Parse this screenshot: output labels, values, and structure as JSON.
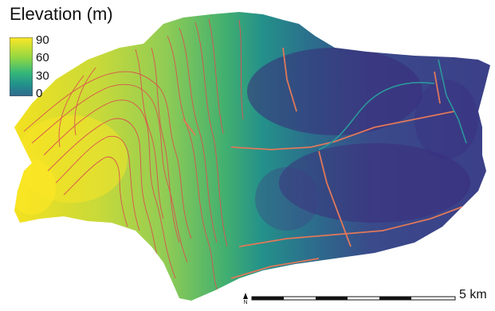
{
  "legend": {
    "title": "Elevation (m)",
    "ticks": [
      "90",
      "60",
      "30",
      "0"
    ],
    "colors": [
      "#fde725",
      "#5ec962",
      "#21918c",
      "#3b528b",
      "#440154"
    ]
  },
  "map": {
    "contour_color": "#d9534f",
    "road_color": "#e0785a",
    "rail_color": "#2a9d9d"
  },
  "scalebar": {
    "label": "5 km",
    "north_symbol": "N"
  }
}
